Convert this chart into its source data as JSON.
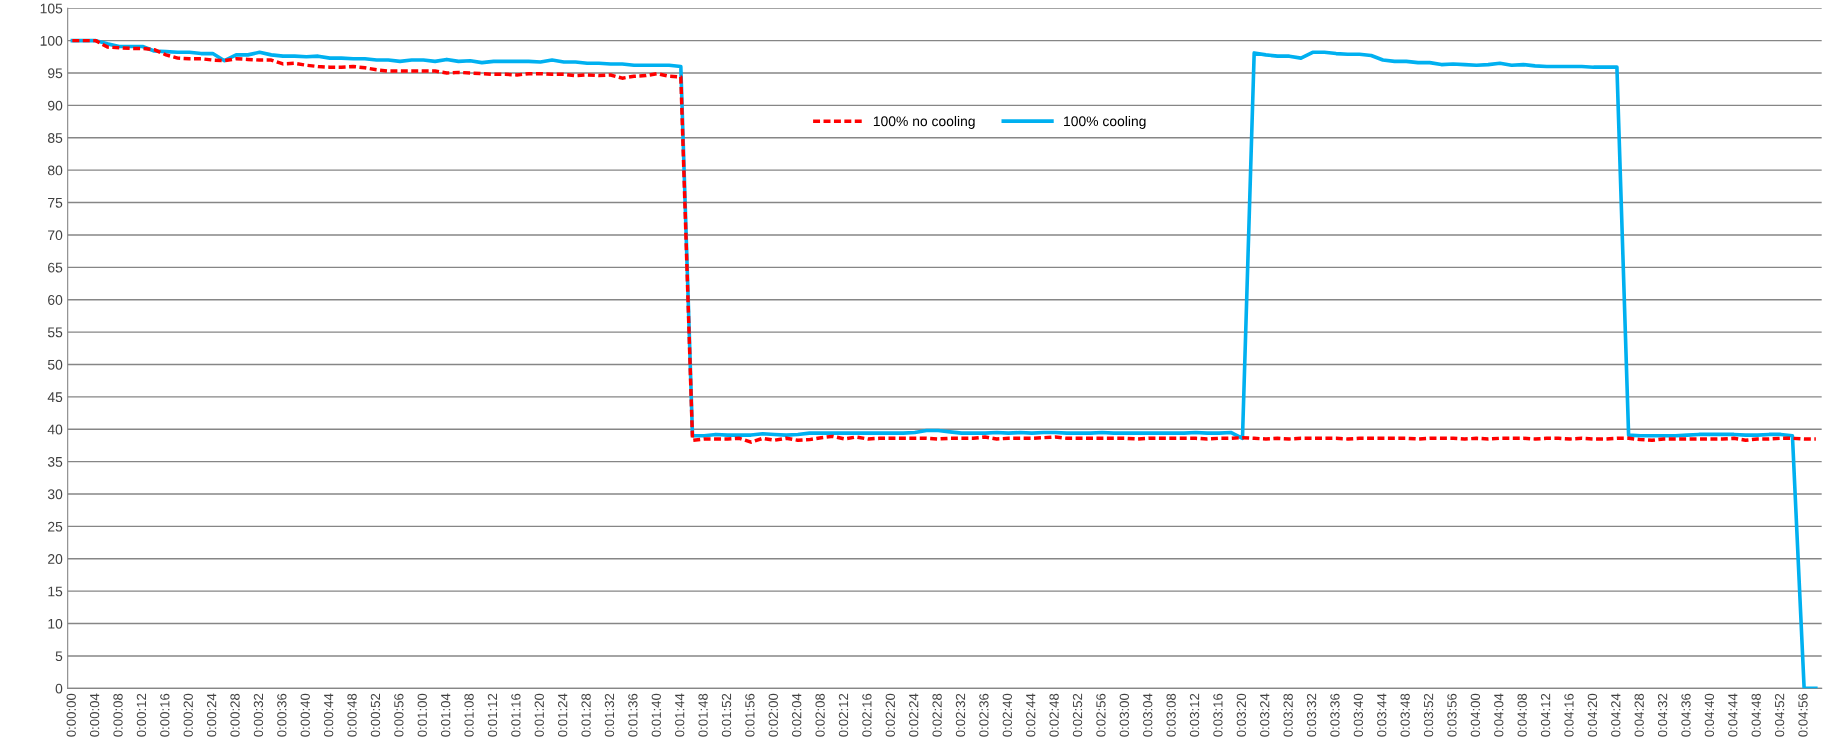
{
  "chart_data": {
    "type": "line",
    "categories": [
      "0:00:00",
      null,
      "0:00:04",
      null,
      "0:00:08",
      null,
      "0:00:12",
      null,
      "0:00:16",
      null,
      "0:00:20",
      null,
      "0:00:24",
      null,
      "0:00:28",
      null,
      "0:00:32",
      null,
      "0:00:36",
      null,
      "0:00:40",
      null,
      "0:00:44",
      null,
      "0:00:48",
      null,
      "0:00:52",
      null,
      "0:00:56",
      null,
      "0:01:00",
      null,
      "0:01:04",
      null,
      "0:01:08",
      null,
      "0:01:12",
      null,
      "0:01:16",
      null,
      "0:01:20",
      null,
      "0:01:24",
      null,
      "0:01:28",
      null,
      "0:01:32",
      null,
      "0:01:36",
      null,
      "0:01:40",
      null,
      "0:01:44",
      null,
      "0:01:48",
      null,
      "0:01:52",
      null,
      "0:01:56",
      null,
      "0:02:00",
      null,
      "0:02:04",
      null,
      "0:02:08",
      null,
      "0:02:12",
      null,
      "0:02:16",
      null,
      "0:02:20",
      null,
      "0:02:24",
      null,
      "0:02:28",
      null,
      "0:02:32",
      null,
      "0:02:36",
      null,
      "0:02:40",
      null,
      "0:02:44",
      null,
      "0:02:48",
      null,
      "0:02:52",
      null,
      "0:02:56",
      null,
      "0:03:00",
      null,
      "0:03:04",
      null,
      "0:03:08",
      null,
      "0:03:12",
      null,
      "0:03:16",
      null,
      "0:03:20",
      null,
      "0:03:24",
      null,
      "0:03:28",
      null,
      "0:03:32",
      null,
      "0:03:36",
      null,
      "0:03:40",
      null,
      "0:03:44",
      null,
      "0:03:48",
      null,
      "0:03:52",
      null,
      "0:03:56",
      null,
      "0:04:00",
      null,
      "0:04:04",
      null,
      "0:04:08",
      null,
      "0:04:12",
      null,
      "0:04:16",
      null,
      "0:04:20",
      null,
      "0:04:24",
      null,
      "0:04:28",
      null,
      "0:04:32",
      null,
      "0:04:36",
      null,
      "0:04:40",
      null,
      "0:04:44",
      null,
      "0:04:48",
      null,
      "0:04:52",
      null,
      "0:04:56",
      null
    ],
    "series": [
      {
        "name": "100% no cooling",
        "color": "#ff0000",
        "line_style": "dashed",
        "values": [
          100,
          100,
          100,
          99.0,
          98.9,
          98.8,
          98.8,
          98.6,
          97.8,
          97.3,
          97.2,
          97.2,
          97.0,
          96.9,
          97.2,
          97.1,
          97.0,
          97.0,
          96.4,
          96.5,
          96.2,
          96.0,
          95.9,
          95.9,
          96.0,
          95.8,
          95.5,
          95.3,
          95.3,
          95.3,
          95.3,
          95.3,
          95.0,
          95.1,
          95.0,
          94.9,
          94.8,
          94.8,
          94.7,
          94.9,
          94.9,
          94.8,
          94.8,
          94.6,
          94.7,
          94.6,
          94.7,
          94.2,
          94.5,
          94.6,
          94.9,
          94.5,
          94.4,
          38.3,
          38.5,
          38.5,
          38.5,
          38.6,
          38.0,
          38.6,
          38.3,
          38.6,
          38.3,
          38.4,
          38.7,
          38.9,
          38.5,
          38.8,
          38.5,
          38.6,
          38.6,
          38.6,
          38.6,
          38.6,
          38.5,
          38.6,
          38.6,
          38.6,
          38.8,
          38.5,
          38.6,
          38.6,
          38.6,
          38.7,
          38.8,
          38.6,
          38.6,
          38.6,
          38.6,
          38.6,
          38.6,
          38.5,
          38.6,
          38.6,
          38.6,
          38.6,
          38.6,
          38.5,
          38.6,
          38.6,
          38.7,
          38.6,
          38.5,
          38.6,
          38.5,
          38.6,
          38.6,
          38.6,
          38.6,
          38.5,
          38.6,
          38.6,
          38.6,
          38.6,
          38.6,
          38.5,
          38.6,
          38.6,
          38.6,
          38.5,
          38.6,
          38.5,
          38.6,
          38.6,
          38.6,
          38.5,
          38.6,
          38.6,
          38.5,
          38.6,
          38.5,
          38.5,
          38.6,
          38.6,
          38.4,
          38.3,
          38.5,
          38.5,
          38.5,
          38.5,
          38.5,
          38.5,
          38.6,
          38.3,
          38.5,
          38.5,
          38.6,
          38.6,
          38.5,
          38.5
        ]
      },
      {
        "name": "100% cooling",
        "color": "#00b0f0",
        "line_style": "solid",
        "values": [
          100,
          100,
          100,
          99.5,
          99.1,
          99.1,
          99.1,
          98.4,
          98.3,
          98.2,
          98.2,
          98.0,
          98.0,
          96.9,
          97.8,
          97.8,
          98.2,
          97.8,
          97.6,
          97.6,
          97.5,
          97.6,
          97.3,
          97.3,
          97.2,
          97.2,
          97.0,
          97.0,
          96.8,
          97.0,
          97.0,
          96.8,
          97.1,
          96.8,
          96.9,
          96.6,
          96.8,
          96.8,
          96.8,
          96.8,
          96.7,
          97.0,
          96.7,
          96.7,
          96.5,
          96.5,
          96.4,
          96.4,
          96.2,
          96.2,
          96.2,
          96.2,
          96.0,
          39.0,
          39.0,
          39.2,
          39.1,
          39.1,
          39.1,
          39.3,
          39.2,
          39.1,
          39.2,
          39.4,
          39.4,
          39.4,
          39.4,
          39.4,
          39.4,
          39.4,
          39.4,
          39.4,
          39.5,
          39.8,
          39.8,
          39.6,
          39.4,
          39.4,
          39.4,
          39.5,
          39.4,
          39.5,
          39.4,
          39.5,
          39.5,
          39.4,
          39.4,
          39.4,
          39.5,
          39.4,
          39.4,
          39.4,
          39.4,
          39.4,
          39.4,
          39.4,
          39.5,
          39.4,
          39.4,
          39.5,
          38.6,
          98.1,
          97.8,
          97.6,
          97.6,
          97.3,
          98.2,
          98.2,
          98.0,
          97.9,
          97.9,
          97.7,
          97.0,
          96.8,
          96.8,
          96.6,
          96.6,
          96.3,
          96.4,
          96.3,
          96.2,
          96.3,
          96.5,
          96.2,
          96.3,
          96.1,
          96.0,
          96.0,
          96.0,
          96.0,
          95.9,
          95.9,
          95.9,
          39.1,
          39.0,
          39.0,
          39.0,
          39.0,
          39.1,
          39.2,
          39.2,
          39.2,
          39.2,
          39.1,
          39.1,
          39.2,
          39.2,
          39.0,
          0,
          0
        ]
      }
    ],
    "ylim": [
      0,
      105
    ],
    "yticks": [
      0,
      5,
      10,
      15,
      20,
      25,
      30,
      35,
      40,
      45,
      50,
      55,
      60,
      65,
      70,
      75,
      80,
      85,
      90,
      95,
      100,
      105
    ],
    "grid": "y",
    "legend": "top",
    "marker": "none"
  }
}
